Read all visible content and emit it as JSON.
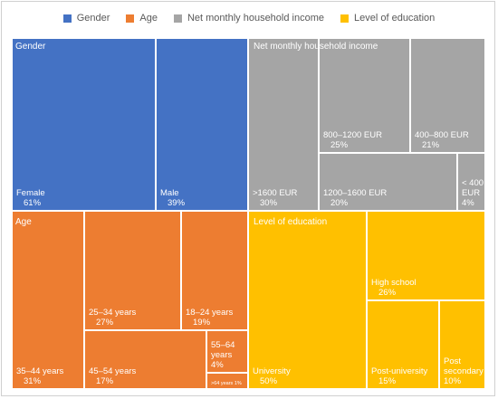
{
  "chart_data": {
    "type": "treemap",
    "legend": [
      {
        "name": "Gender",
        "color": "#4472C4"
      },
      {
        "name": "Age",
        "color": "#ED7D31"
      },
      {
        "name": "Net monthly household income",
        "color": "#A5A5A5"
      },
      {
        "name": "Level of education",
        "color": "#FFC000"
      }
    ],
    "groups": [
      {
        "name": "Gender",
        "color": "#4472C4",
        "items": [
          {
            "label": "Female",
            "value": "61%"
          },
          {
            "label": "Male",
            "value": "39%"
          }
        ]
      },
      {
        "name": "Net monthly household income",
        "color": "#A5A5A5",
        "items": [
          {
            "label": ">1600 EUR",
            "value": "30%"
          },
          {
            "label": "800–1200 EUR",
            "value": "25%"
          },
          {
            "label": "400–800  EUR",
            "value": "21%"
          },
          {
            "label": "1200–1600 EUR",
            "value": "20%"
          },
          {
            "label": "< 400 EUR",
            "value": "4%"
          }
        ]
      },
      {
        "name": "Age",
        "color": "#ED7D31",
        "items": [
          {
            "label": "35–44 years",
            "value": "31%"
          },
          {
            "label": "25–34 years",
            "value": "27%"
          },
          {
            "label": "18–24 years",
            "value": "19%"
          },
          {
            "label": "45–54 years",
            "value": "17%"
          },
          {
            "label": "55–64 years",
            "value": "4%"
          },
          {
            "label": ">64 years",
            "value": "1%"
          }
        ]
      },
      {
        "name": "Level of education",
        "color": "#FFC000",
        "items": [
          {
            "label": "University",
            "value": "50%"
          },
          {
            "label": "High school",
            "value": "26%"
          },
          {
            "label": "Post-university",
            "value": "15%"
          },
          {
            "label": "Post secondary",
            "value": "10%"
          }
        ]
      }
    ]
  }
}
